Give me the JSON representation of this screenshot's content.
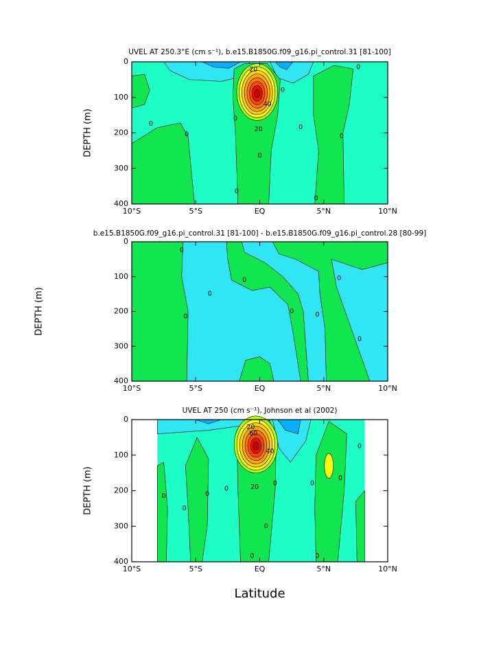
{
  "chart_data": [
    {
      "type": "contour",
      "title": "UVEL AT 250.3°E (cm s⁻¹), b.e15.B1850G.f09_g16.pi_control.31 [81-100]",
      "ylabel": "DEPTH (m)",
      "xlim": [
        -10,
        10
      ],
      "xticks": [
        {
          "value": -10,
          "label": "10°S"
        },
        {
          "value": -5,
          "label": "5°S"
        },
        {
          "value": 0,
          "label": "EQ"
        },
        {
          "value": 5,
          "label": "5°N"
        },
        {
          "value": 10,
          "label": "10°N"
        }
      ],
      "ylim": [
        400,
        0
      ],
      "yticks": [
        0,
        100,
        200,
        300,
        400
      ],
      "contour_labels": [
        20,
        40,
        20,
        0,
        0,
        0,
        0,
        0,
        0,
        0,
        0,
        0,
        0
      ]
    },
    {
      "type": "contour",
      "title": "b.e15.B1850G.f09_g16.pi_control.31 [81-100] - b.e15.B1850G.f09_g16.pi_control.28 [80-99]",
      "ylabel": "DEPTH (m)",
      "xlim": [
        -10,
        10
      ],
      "xticks": [
        {
          "value": -10,
          "label": "10°S"
        },
        {
          "value": -5,
          "label": "5°S"
        },
        {
          "value": 0,
          "label": "EQ"
        },
        {
          "value": 5,
          "label": "5°N"
        },
        {
          "value": 10,
          "label": "10°N"
        }
      ],
      "ylim": [
        400,
        0
      ],
      "yticks": [
        0,
        100,
        200,
        300,
        400
      ],
      "contour_labels": [
        0,
        0,
        0,
        0,
        0,
        0,
        0,
        0
      ]
    },
    {
      "type": "contour",
      "title": "UVEL AT 250 (cm s⁻¹), Johnson et al (2002)",
      "ylabel": "DEPTH (m)",
      "xlabel": "Latitude",
      "xlim": [
        -10,
        10
      ],
      "xticks": [
        {
          "value": -10,
          "label": "10°S"
        },
        {
          "value": -5,
          "label": "5°S"
        },
        {
          "value": 0,
          "label": "EQ"
        },
        {
          "value": 5,
          "label": "5°N"
        },
        {
          "value": 10,
          "label": "10°N"
        }
      ],
      "ylim": [
        400,
        0
      ],
      "yticks": [
        0,
        100,
        200,
        300,
        400
      ],
      "contour_labels": [
        20,
        60,
        40,
        20,
        0,
        0,
        0,
        0,
        0,
        0,
        0,
        0,
        0,
        0,
        0
      ]
    }
  ]
}
